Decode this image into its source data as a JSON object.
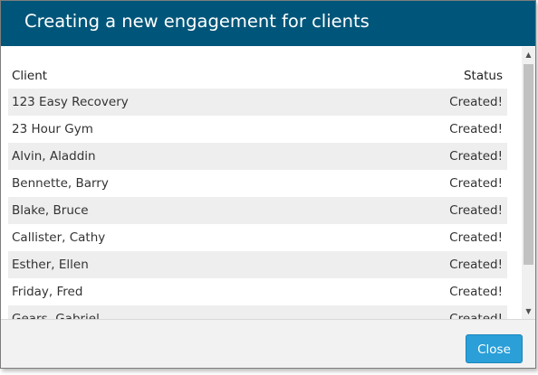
{
  "dialog": {
    "title": "Creating a new engagement for clients"
  },
  "table": {
    "headers": {
      "client": "Client",
      "status": "Status"
    },
    "rows": [
      {
        "client": "123 Easy Recovery",
        "status": "Created!"
      },
      {
        "client": "23 Hour Gym",
        "status": "Created!"
      },
      {
        "client": "Alvin, Aladdin",
        "status": "Created!"
      },
      {
        "client": "Bennette, Barry",
        "status": "Created!"
      },
      {
        "client": "Blake, Bruce",
        "status": "Created!"
      },
      {
        "client": "Callister, Cathy",
        "status": "Created!"
      },
      {
        "client": "Esther, Ellen",
        "status": "Created!"
      },
      {
        "client": "Friday, Fred",
        "status": "Created!"
      },
      {
        "client": "Gears, Gabriel",
        "status": "Created!"
      }
    ]
  },
  "scrollbar": {
    "up_arrow": "▲",
    "down_arrow": "▼",
    "up_icon": "scroll-up-arrow-icon",
    "down_icon": "scroll-down-arrow-icon"
  },
  "footer": {
    "close_label": "Close"
  },
  "colors": {
    "titlebar": "#00567a",
    "row_alt": "#eeeeee",
    "button": "#2a9fd8",
    "footer": "#f2f2f2"
  }
}
